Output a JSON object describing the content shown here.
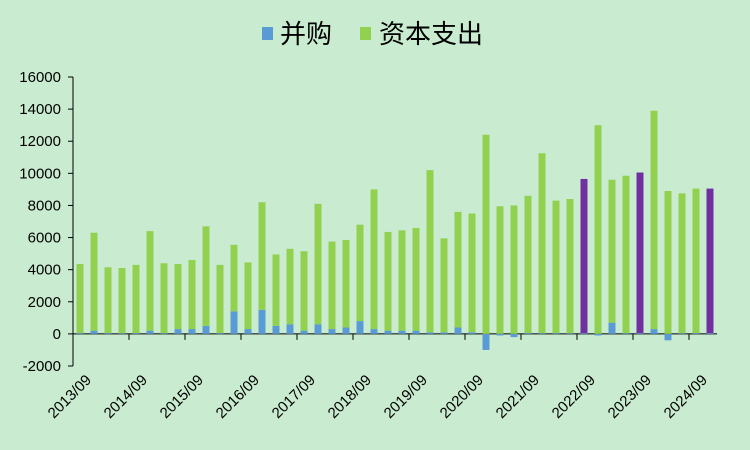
{
  "chart_data": {
    "type": "bar",
    "stacked": true,
    "title": "",
    "xlabel": "",
    "ylabel": "",
    "ylim": [
      -2000,
      16000
    ],
    "yticks": [
      -2000,
      0,
      2000,
      4000,
      6000,
      8000,
      10000,
      12000,
      14000,
      16000
    ],
    "ytick_labels": [
      "-2000",
      "0",
      "2000",
      "4000",
      "6000",
      "8000",
      "10000",
      "12000",
      "14000",
      "16000"
    ],
    "grid": false,
    "legend_position": "top-center",
    "x_tick_labels": [
      "2013/09",
      "2014/09",
      "2015/09",
      "2016/09",
      "2017/09",
      "2018/09",
      "2019/09",
      "2020/09",
      "2021/09",
      "2022/09",
      "2023/09",
      "2024/09"
    ],
    "x_tick_every": 4,
    "series": [
      {
        "name": "并购",
        "color": "#5b9bd5",
        "values": [
          50,
          200,
          50,
          50,
          50,
          200,
          50,
          300,
          300,
          500,
          50,
          1400,
          300,
          1500,
          500,
          600,
          200,
          600,
          300,
          400,
          800,
          300,
          200,
          200,
          200,
          100,
          100,
          400,
          100,
          -1000,
          -100,
          -200,
          50,
          50,
          50,
          50,
          50,
          -100,
          700,
          50,
          50,
          300,
          -400,
          50,
          50,
          50
        ]
      },
      {
        "name": "资本支出",
        "color": "#92d050",
        "values": [
          4300,
          6100,
          4100,
          4050,
          4250,
          6200,
          4350,
          4050,
          4300,
          6200,
          4250,
          4150,
          4150,
          6700,
          4450,
          4700,
          4950,
          7500,
          5450,
          5450,
          6000,
          8700,
          6150,
          6250,
          6400,
          10100,
          5850,
          7200,
          7400,
          12400,
          7950,
          8000,
          8550,
          11200,
          8250,
          8350,
          9600,
          13000,
          8900,
          9800,
          10000,
          13600,
          8900,
          8700,
          9000,
          9000
        ]
      }
    ],
    "highlighted_totals": {
      "color": "#7030a0",
      "indices": [
        36,
        40,
        45
      ]
    }
  }
}
